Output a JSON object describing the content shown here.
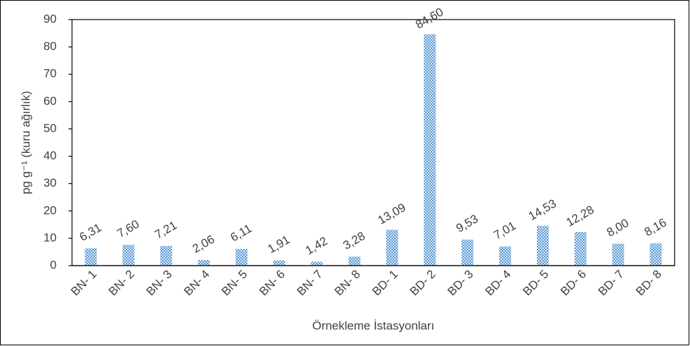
{
  "chart_data": {
    "type": "bar",
    "y_label": "pg g⁻¹ (kuru ağırlık)",
    "x_label": "Örnekleme İstasyonları",
    "categories": [
      "BN- 1",
      "BN- 2",
      "BN- 3",
      "BN- 4",
      "BN- 5",
      "BN- 6",
      "BN- 7",
      "BN- 8",
      "BD- 1",
      "BD- 2",
      "BD- 3",
      "BD- 4",
      "BD- 5",
      "BD- 6",
      "BD- 7",
      "BD- 8"
    ],
    "values": [
      6.31,
      7.6,
      7.21,
      2.06,
      6.11,
      1.91,
      1.42,
      3.28,
      13.09,
      84.6,
      9.53,
      7.01,
      14.53,
      12.28,
      8.0,
      8.16
    ],
    "value_labels": [
      "6,31",
      "7,60",
      "7,21",
      "2,06",
      "6,11",
      "1,91",
      "1,42",
      "3,28",
      "13,09",
      "84,60",
      "9,53",
      "7,01",
      "14,53",
      "12,28",
      "8,00",
      "8,16"
    ],
    "color": "#5b9bd5",
    "ylim": [
      0,
      90
    ],
    "yticks": [
      0,
      10,
      20,
      30,
      40,
      50,
      60,
      70,
      80,
      90
    ],
    "grid": false
  }
}
